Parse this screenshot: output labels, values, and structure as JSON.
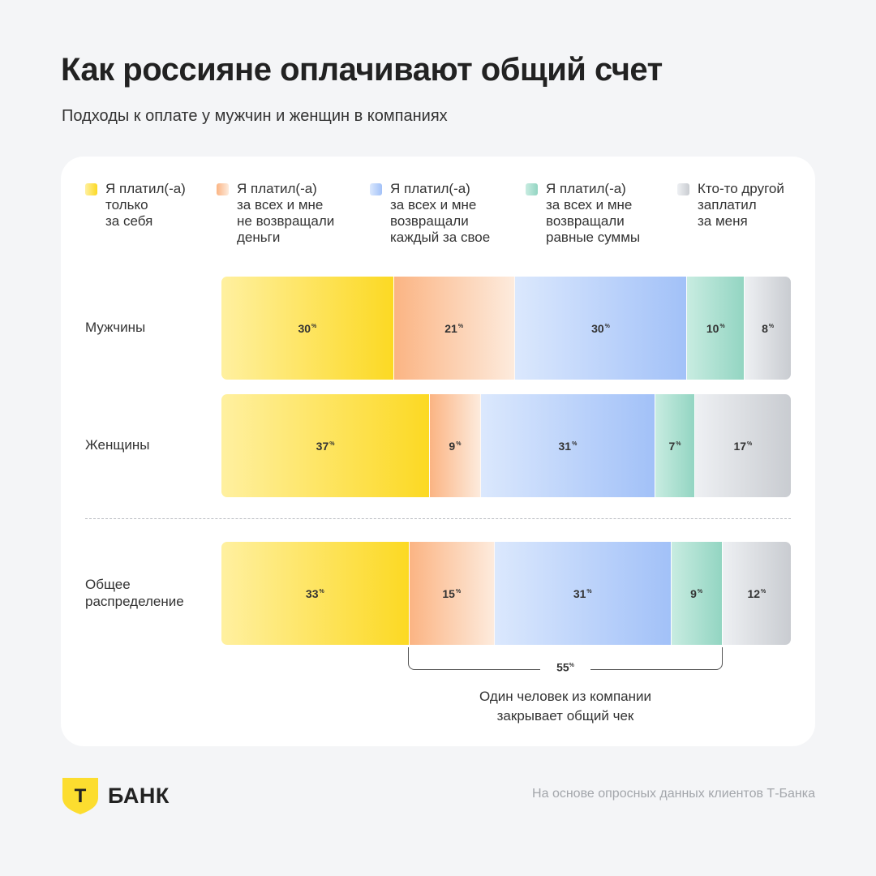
{
  "header": {
    "title": "Как россияне оплачивают общий счет",
    "subtitle": "Подходы к оплате у мужчин и женщин в компаниях"
  },
  "chart_data": {
    "type": "bar",
    "orientation": "horizontal",
    "stacked": true,
    "normalized": true,
    "title": "Как россияне оплачивают общий счет",
    "subtitle": "Подходы к оплате у мужчин и женщин в компаниях",
    "unit": "%",
    "legend_position": "top",
    "categories": [
      "Мужчины",
      "Женщины",
      "Общее\nраспределение"
    ],
    "series": [
      {
        "name": "Я платил(-а)\nтолько\nза себя",
        "color": "#fbd934",
        "values": [
          30,
          37,
          33
        ]
      },
      {
        "name": "Я платил(-а)\nза всех и мне\nне возвращали\nденьги",
        "color": "#f9a873",
        "values": [
          21,
          9,
          15
        ]
      },
      {
        "name": "Я платил(-а)\nза всех и мне\nвозвращали\nкаждый за свое",
        "color": "#a7c6f9",
        "values": [
          30,
          31,
          31
        ]
      },
      {
        "name": "Я платил(-а)\nза всех и мне\nвозвращали\nравные суммы",
        "color": "#9fdac9",
        "values": [
          10,
          7,
          9
        ]
      },
      {
        "name": "Кто-то другой\nзаплатил\nза меня",
        "color": "#ccd0d5",
        "values": [
          8,
          17,
          12
        ]
      }
    ],
    "annotation": {
      "value": 55,
      "label": "55",
      "caption": "Один человек из компании\nзакрывает общий чек",
      "covers_series": [
        1,
        2,
        3
      ],
      "row": 2
    }
  },
  "footer": {
    "logo_text": "БАНК",
    "logo_letter": "Т",
    "note": "На основе опросных данных клиентов Т-Банка"
  },
  "pct_sign": "%"
}
